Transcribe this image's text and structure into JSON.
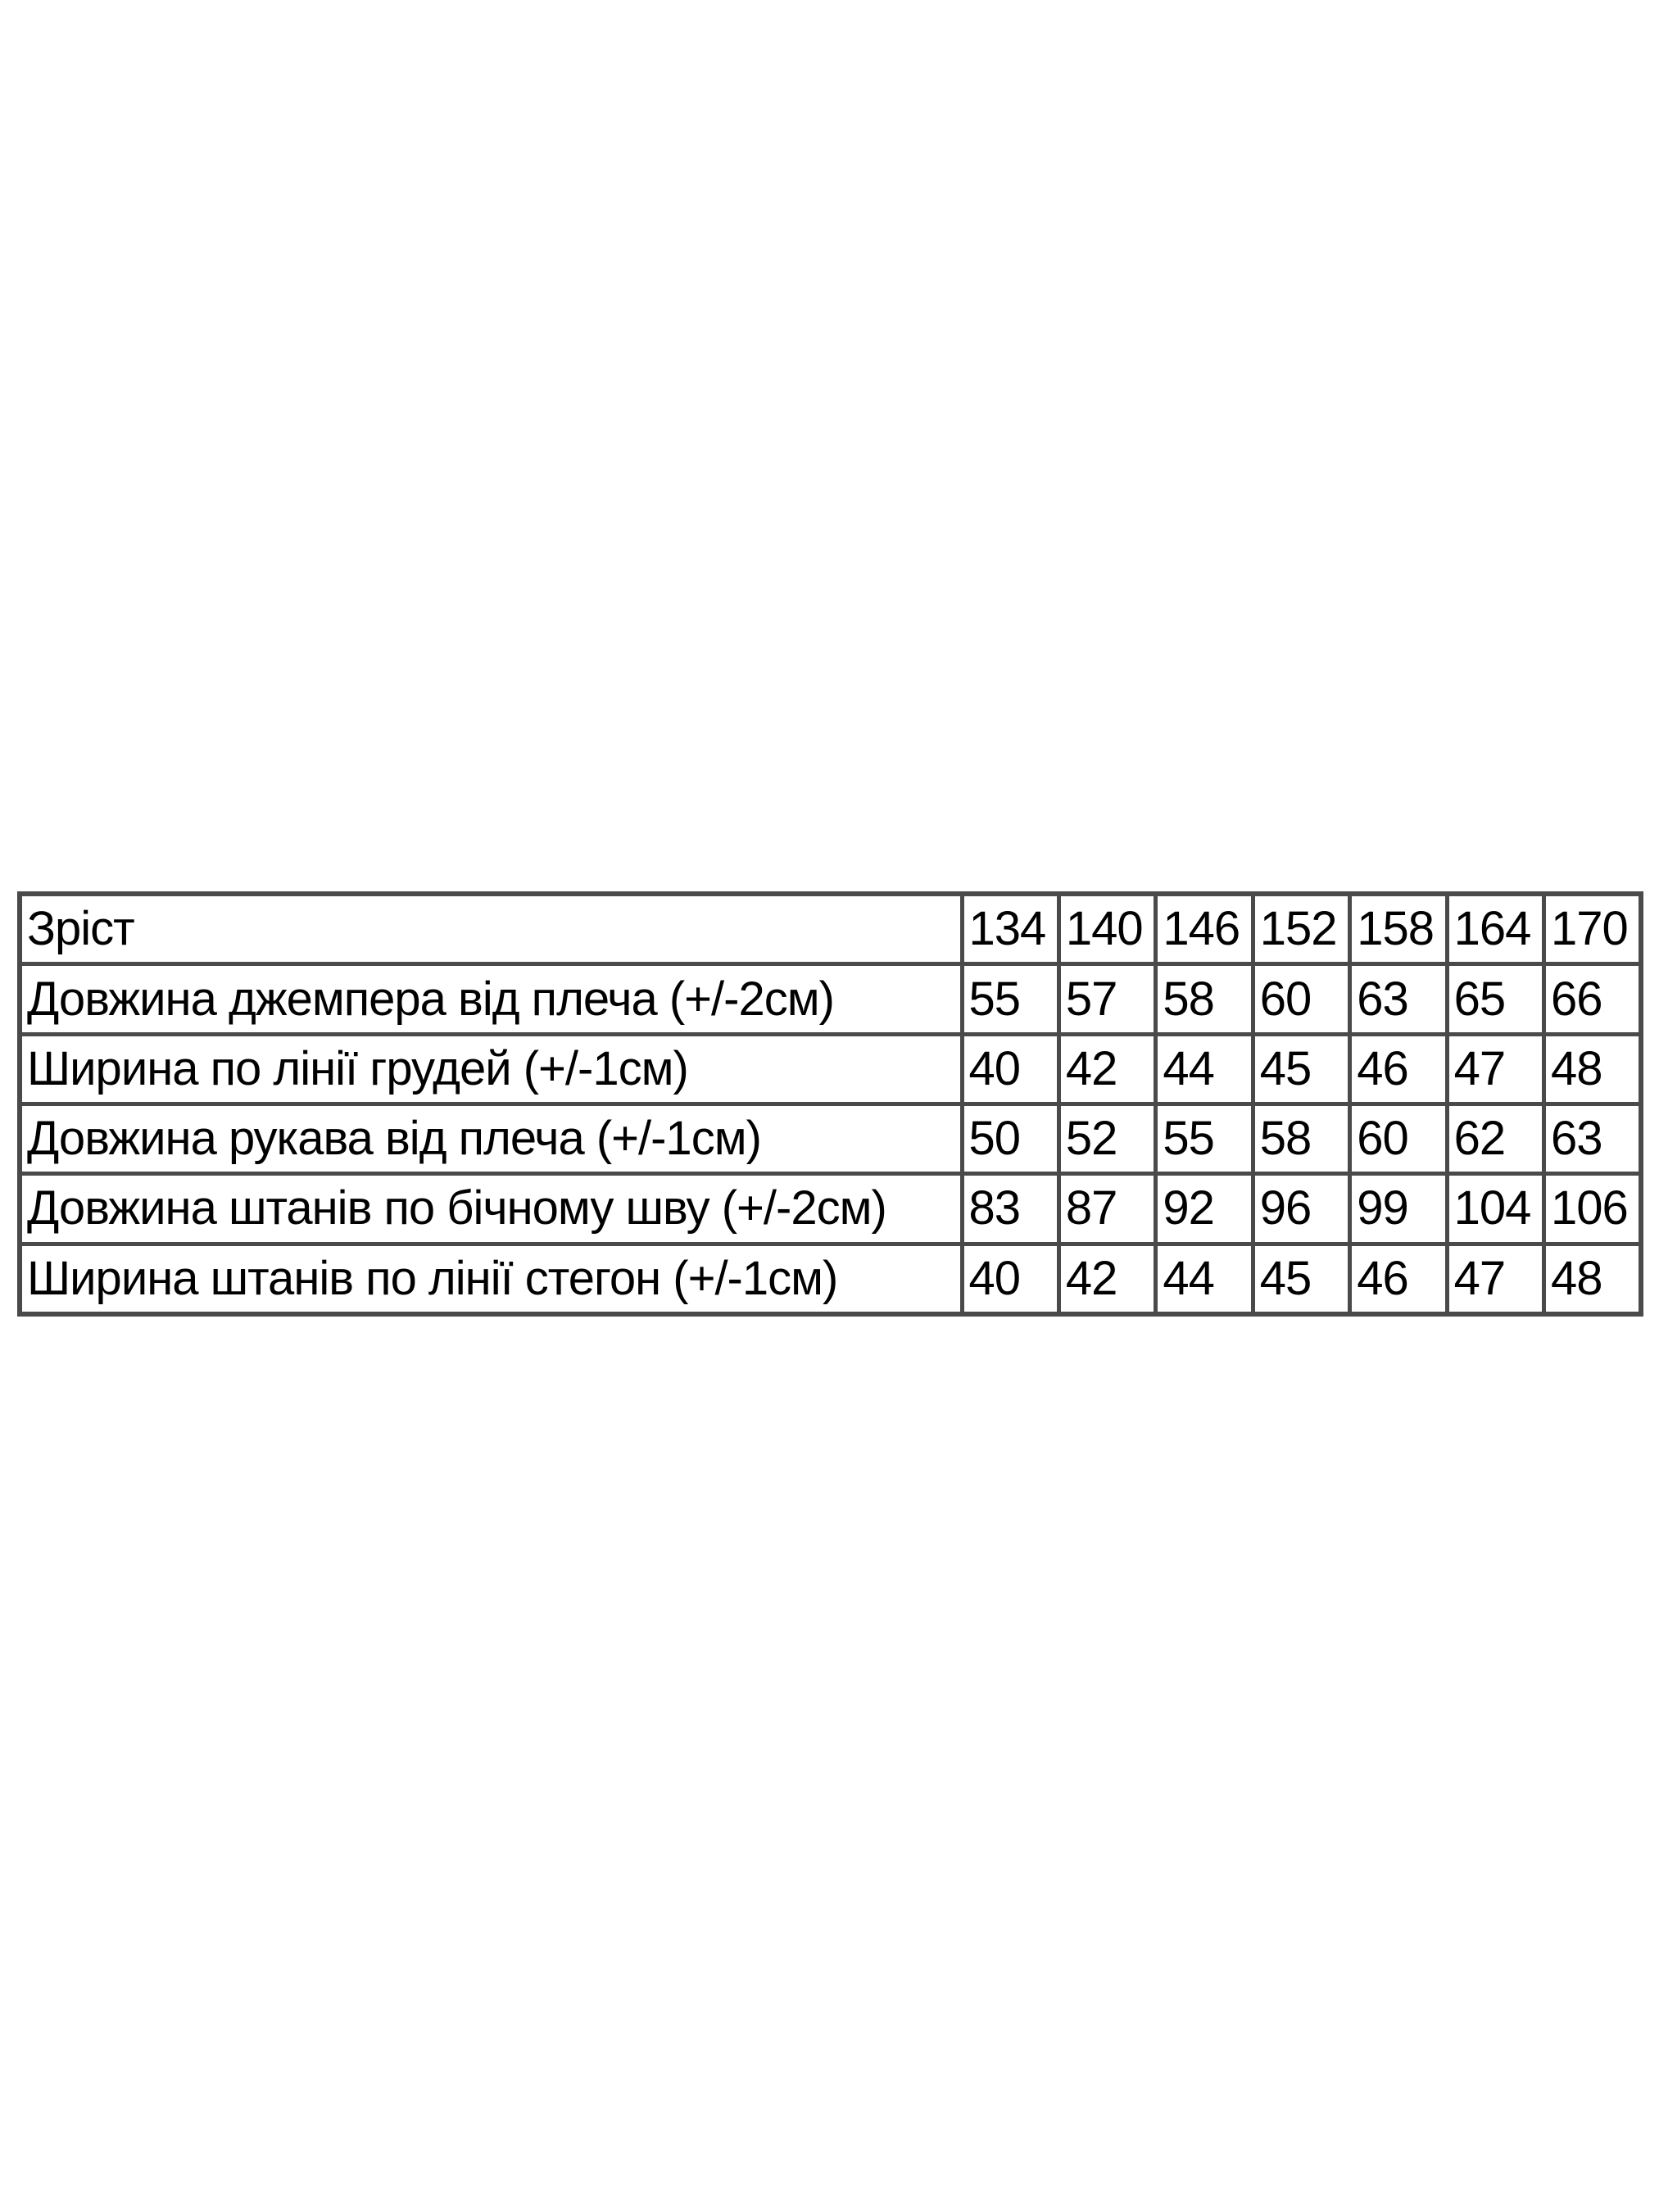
{
  "size_table": {
    "header": {
      "label": "Зріст",
      "sizes": [
        "134",
        "140",
        "146",
        "152",
        "158",
        "164",
        "170"
      ]
    },
    "rows": [
      {
        "label": "Довжина джемпера від плеча (+/-2см)",
        "values": [
          "55",
          "57",
          "58",
          "60",
          "63",
          "65",
          "66"
        ]
      },
      {
        "label": "Ширина по лінії грудей (+/-1см)",
        "values": [
          "40",
          "42",
          "44",
          "45",
          "46",
          "47",
          "48"
        ]
      },
      {
        "label": "Довжина рукава від плеча (+/-1см)",
        "values": [
          "50",
          "52",
          "55",
          "58",
          "60",
          "62",
          "63"
        ]
      },
      {
        "label": "Довжина штанів по бічному шву (+/-2см)",
        "values": [
          "83",
          "87",
          "92",
          "96",
          "99",
          "104",
          "106"
        ]
      },
      {
        "label": "Ширина штанів по лінії стегон (+/-1см)",
        "values": [
          "40",
          "42",
          "44",
          "45",
          "46",
          "47",
          "48"
        ]
      }
    ]
  }
}
